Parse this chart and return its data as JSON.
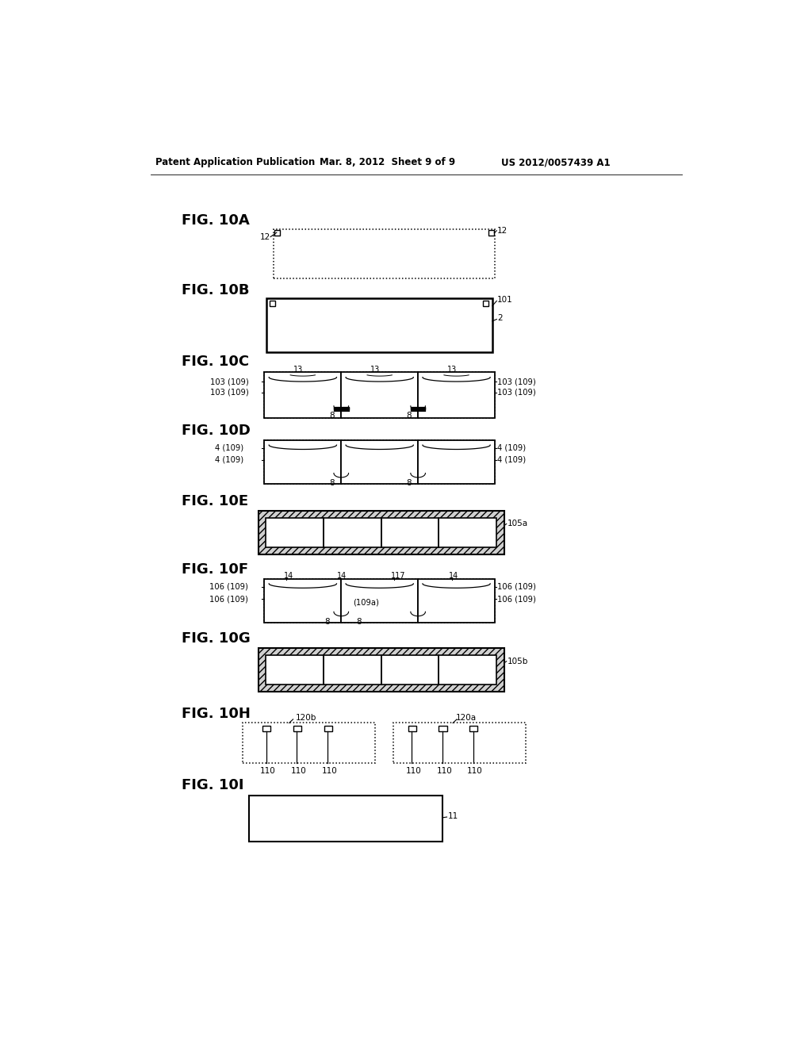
{
  "bg_color": "#ffffff",
  "header_left": "Patent Application Publication",
  "header_mid": "Mar. 8, 2012  Sheet 9 of 9",
  "header_right": "US 2012/0057439 A1"
}
